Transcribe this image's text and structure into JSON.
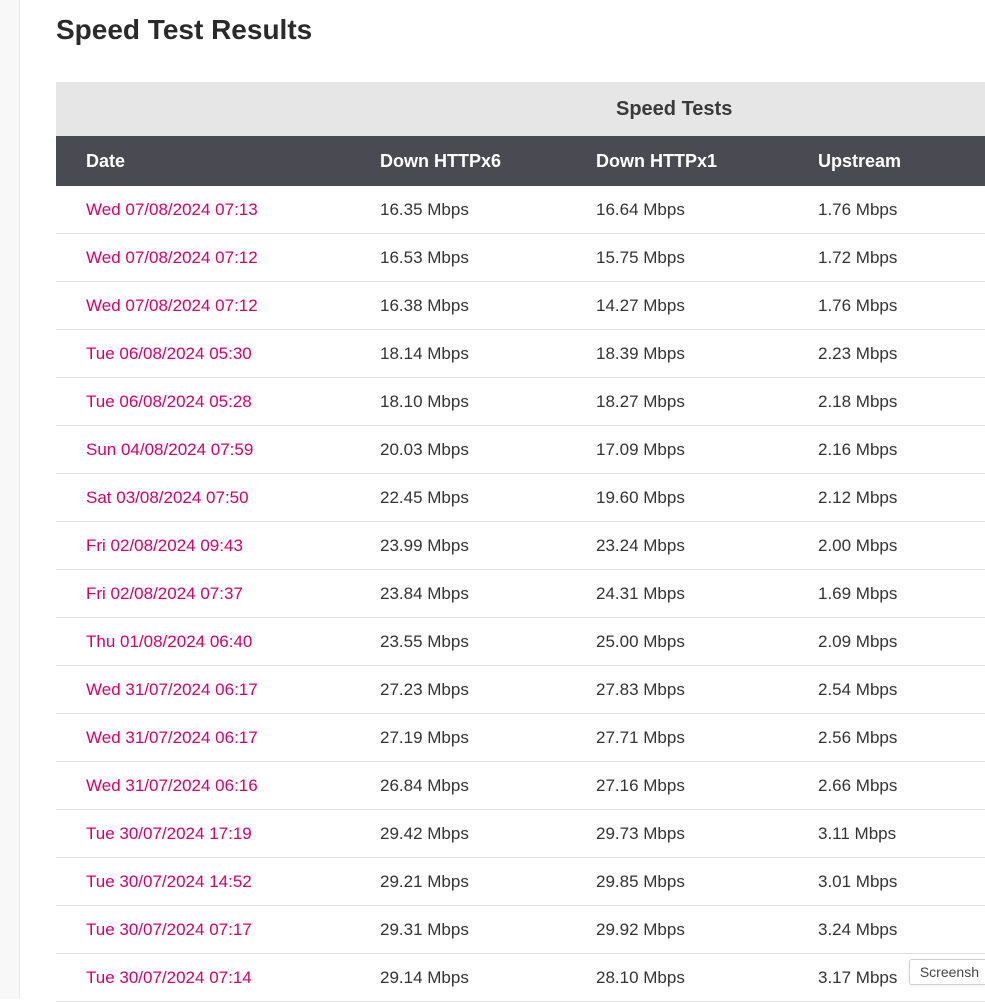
{
  "page_title": "Speed Test Results",
  "group_header": "Speed Tests",
  "columns": {
    "date": "Date",
    "down6": "Down HTTPx6",
    "down1": "Down HTTPx1",
    "up": "Upstream"
  },
  "colors": {
    "group_header_bg": "#e6e6e6",
    "col_header_bg": "#4a4a52",
    "col_header_text": "#ffffff",
    "date_link": "#d6006c",
    "cell_text": "#333333",
    "row_border": "#e0e0e0",
    "page_title": "#2a2a2a"
  },
  "rows": [
    {
      "date": "Wed 07/08/2024 07:13",
      "down6": "16.35 Mbps",
      "down1": "16.64 Mbps",
      "up": "1.76 Mbps"
    },
    {
      "date": "Wed 07/08/2024 07:12",
      "down6": "16.53 Mbps",
      "down1": "15.75 Mbps",
      "up": "1.72 Mbps"
    },
    {
      "date": "Wed 07/08/2024 07:12",
      "down6": "16.38 Mbps",
      "down1": "14.27 Mbps",
      "up": "1.76 Mbps"
    },
    {
      "date": "Tue 06/08/2024 05:30",
      "down6": "18.14 Mbps",
      "down1": "18.39 Mbps",
      "up": "2.23 Mbps"
    },
    {
      "date": "Tue 06/08/2024 05:28",
      "down6": "18.10 Mbps",
      "down1": "18.27 Mbps",
      "up": "2.18 Mbps"
    },
    {
      "date": "Sun 04/08/2024 07:59",
      "down6": "20.03 Mbps",
      "down1": "17.09 Mbps",
      "up": "2.16 Mbps"
    },
    {
      "date": "Sat 03/08/2024 07:50",
      "down6": "22.45 Mbps",
      "down1": "19.60 Mbps",
      "up": "2.12 Mbps"
    },
    {
      "date": "Fri 02/08/2024 09:43",
      "down6": "23.99 Mbps",
      "down1": "23.24 Mbps",
      "up": "2.00 Mbps"
    },
    {
      "date": "Fri 02/08/2024 07:37",
      "down6": "23.84 Mbps",
      "down1": "24.31 Mbps",
      "up": "1.69 Mbps"
    },
    {
      "date": "Thu 01/08/2024 06:40",
      "down6": "23.55 Mbps",
      "down1": "25.00 Mbps",
      "up": "2.09 Mbps"
    },
    {
      "date": "Wed 31/07/2024 06:17",
      "down6": "27.23 Mbps",
      "down1": "27.83 Mbps",
      "up": "2.54 Mbps"
    },
    {
      "date": "Wed 31/07/2024 06:17",
      "down6": "27.19 Mbps",
      "down1": "27.71 Mbps",
      "up": "2.56 Mbps"
    },
    {
      "date": "Wed 31/07/2024 06:16",
      "down6": "26.84 Mbps",
      "down1": "27.16 Mbps",
      "up": "2.66 Mbps"
    },
    {
      "date": "Tue 30/07/2024 17:19",
      "down6": "29.42 Mbps",
      "down1": "29.73 Mbps",
      "up": "3.11 Mbps"
    },
    {
      "date": "Tue 30/07/2024 14:52",
      "down6": "29.21 Mbps",
      "down1": "29.85 Mbps",
      "up": "3.01 Mbps"
    },
    {
      "date": "Tue 30/07/2024 07:17",
      "down6": "29.31 Mbps",
      "down1": "29.92 Mbps",
      "up": "3.24 Mbps"
    },
    {
      "date": "Tue 30/07/2024 07:14",
      "down6": "29.14 Mbps",
      "down1": "28.10 Mbps",
      "up": "3.17 Mbps"
    }
  ],
  "screenshot_tab": "Screensh"
}
